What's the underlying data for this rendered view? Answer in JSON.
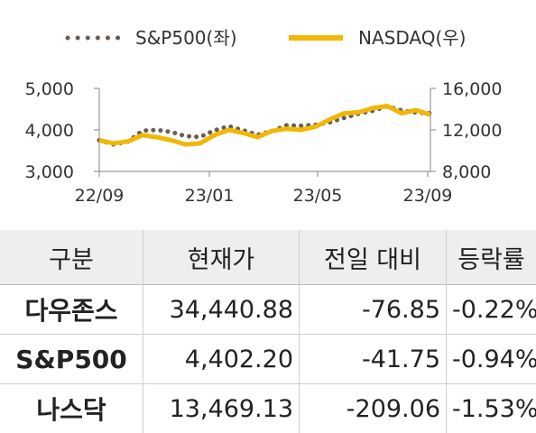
{
  "chart_data": {
    "type": "line",
    "legend_position": "top",
    "x_tick_labels": [
      "22/09",
      "23/01",
      "23/05",
      "23/09"
    ],
    "y_left": {
      "ticks": [
        "3,000",
        "4,000",
        "5,000"
      ],
      "range": [
        3000,
        5000
      ]
    },
    "y_right": {
      "ticks": [
        "8,000",
        "12,000",
        "16,000"
      ],
      "range": [
        8000,
        16000
      ]
    },
    "series": [
      {
        "name": "S&P500(좌)",
        "axis": "left",
        "style": "dotted",
        "color": "#6b5d4f",
        "x": [
          "22/09",
          "22/10a",
          "22/10b",
          "22/11a",
          "22/11b",
          "22/12a",
          "22/12b",
          "23/01a",
          "23/01b",
          "23/02a",
          "23/02b",
          "23/03a",
          "23/03b",
          "23/04a",
          "23/04b",
          "23/05a",
          "23/05b",
          "23/06a",
          "23/06b",
          "23/07a",
          "23/07b",
          "23/08a",
          "23/08b",
          "23/09"
        ],
        "values": [
          3750,
          3650,
          3720,
          3980,
          4000,
          3950,
          3850,
          3830,
          3990,
          4090,
          3990,
          3880,
          3970,
          4110,
          4100,
          4120,
          4180,
          4290,
          4390,
          4460,
          4570,
          4470,
          4420,
          4400
        ]
      },
      {
        "name": "NASDAQ(우)",
        "axis": "right",
        "style": "solid",
        "color": "#f2b705",
        "x": [
          "22/09",
          "22/10a",
          "22/10b",
          "22/11a",
          "22/11b",
          "22/12a",
          "22/12b",
          "23/01a",
          "23/01b",
          "23/02a",
          "23/02b",
          "23/03a",
          "23/03b",
          "23/04a",
          "23/04b",
          "23/05a",
          "23/05b",
          "23/06a",
          "23/06b",
          "23/07a",
          "23/07b",
          "23/08a",
          "23/08b",
          "23/09"
        ],
        "values": [
          11000,
          10700,
          10900,
          11500,
          11300,
          11000,
          10600,
          10700,
          11500,
          12000,
          11700,
          11300,
          11900,
          12100,
          12000,
          12300,
          13000,
          13600,
          13700,
          14100,
          14300,
          13600,
          13900,
          13450
        ]
      }
    ]
  },
  "table": {
    "headers": [
      "구분",
      "현재가",
      "전일 대비",
      "등락률"
    ],
    "rows": [
      {
        "name": "다우존스",
        "price": "34,440.88",
        "change": "-76.85",
        "rate": "-0.22%"
      },
      {
        "name": "S&P500",
        "price": "4,402.20",
        "change": "-41.75",
        "rate": "-0.94%"
      },
      {
        "name": "나스닥",
        "price": "13,469.13",
        "change": "-209.06",
        "rate": "-1.53%"
      }
    ]
  }
}
